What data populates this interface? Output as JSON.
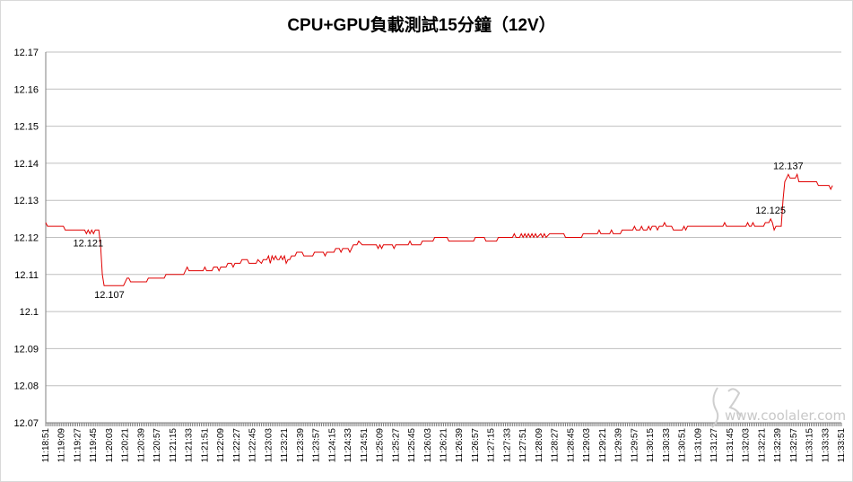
{
  "chart_data": {
    "type": "line",
    "title": "CPU+GPU負載測試15分鐘（12V）",
    "xlabel": "",
    "ylabel": "",
    "ylim": [
      12.07,
      12.17
    ],
    "ytick_labels": [
      "12.07",
      "12.08",
      "12.09",
      "12.1",
      "12.11",
      "12.12",
      "12.13",
      "12.14",
      "12.15",
      "12.16",
      "12.17"
    ],
    "grid": true,
    "legend": "none",
    "x_tick_labels": [
      "11:18:51",
      "11:19:09",
      "11:19:27",
      "11:19:45",
      "11:20:03",
      "11:20:21",
      "11:20:39",
      "11:20:57",
      "11:21:15",
      "11:21:33",
      "11:21:51",
      "11:22:09",
      "11:22:27",
      "11:22:45",
      "11:23:03",
      "11:23:21",
      "11:23:39",
      "11:23:57",
      "11:24:15",
      "11:24:33",
      "11:24:51",
      "11:25:09",
      "11:25:27",
      "11:25:45",
      "11:26:03",
      "11:26:21",
      "11:26:39",
      "11:26:57",
      "11:27:15",
      "11:27:33",
      "11:27:51",
      "11:28:09",
      "11:28:27",
      "11:28:45",
      "11:29:03",
      "11:29:21",
      "11:29:39",
      "11:29:57",
      "11:30:15",
      "11:30:33",
      "11:30:51",
      "11:31:09",
      "11:31:27",
      "11:31:45",
      "11:32:03",
      "11:32:21",
      "11:32:39",
      "11:32:57",
      "11:33:15",
      "11:33:33",
      "11:33:51"
    ],
    "series": [
      {
        "color": "#e00000",
        "points": [
          [
            "11:18:51",
            12.124
          ],
          [
            "11:18:53",
            12.123
          ],
          [
            "11:19:11",
            12.123
          ],
          [
            "11:19:13",
            12.122
          ],
          [
            "11:19:35",
            12.122
          ],
          [
            "11:19:37",
            12.121
          ],
          [
            "11:19:39",
            12.122
          ],
          [
            "11:19:41",
            12.121
          ],
          [
            "11:19:43",
            12.122
          ],
          [
            "11:19:45",
            12.121
          ],
          [
            "11:19:47",
            12.122
          ],
          [
            "11:19:51",
            12.122
          ],
          [
            "11:19:53",
            12.118
          ],
          [
            "11:19:55",
            12.11
          ],
          [
            "11:19:57",
            12.107
          ],
          [
            "11:20:19",
            12.107
          ],
          [
            "11:20:21",
            12.108
          ],
          [
            "11:20:23",
            12.109
          ],
          [
            "11:20:25",
            12.109
          ],
          [
            "11:20:27",
            12.108
          ],
          [
            "11:20:45",
            12.108
          ],
          [
            "11:20:47",
            12.109
          ],
          [
            "11:21:05",
            12.109
          ],
          [
            "11:21:07",
            12.11
          ],
          [
            "11:21:27",
            12.11
          ],
          [
            "11:21:29",
            12.111
          ],
          [
            "11:21:31",
            12.112
          ],
          [
            "11:21:33",
            12.111
          ],
          [
            "11:21:49",
            12.111
          ],
          [
            "11:21:51",
            12.112
          ],
          [
            "11:21:53",
            12.111
          ],
          [
            "11:21:59",
            12.111
          ],
          [
            "11:22:01",
            12.112
          ],
          [
            "11:22:05",
            12.112
          ],
          [
            "11:22:07",
            12.111
          ],
          [
            "11:22:09",
            12.112
          ],
          [
            "11:22:15",
            12.112
          ],
          [
            "11:22:17",
            12.113
          ],
          [
            "11:22:21",
            12.113
          ],
          [
            "11:22:23",
            12.112
          ],
          [
            "11:22:25",
            12.113
          ],
          [
            "11:22:31",
            12.113
          ],
          [
            "11:22:33",
            12.114
          ],
          [
            "11:22:39",
            12.114
          ],
          [
            "11:22:41",
            12.113
          ],
          [
            "11:22:49",
            12.113
          ],
          [
            "11:22:51",
            12.114
          ],
          [
            "11:22:55",
            12.113
          ],
          [
            "11:22:57",
            12.114
          ],
          [
            "11:23:01",
            12.114
          ],
          [
            "11:23:03",
            12.115
          ],
          [
            "11:23:05",
            12.113
          ],
          [
            "11:23:07",
            12.115
          ],
          [
            "11:23:09",
            12.114
          ],
          [
            "11:23:11",
            12.115
          ],
          [
            "11:23:13",
            12.114
          ],
          [
            "11:23:15",
            12.114
          ],
          [
            "11:23:17",
            12.115
          ],
          [
            "11:23:19",
            12.114
          ],
          [
            "11:23:21",
            12.115
          ],
          [
            "11:23:23",
            12.113
          ],
          [
            "11:23:25",
            12.114
          ],
          [
            "11:23:27",
            12.114
          ],
          [
            "11:23:29",
            12.115
          ],
          [
            "11:23:33",
            12.115
          ],
          [
            "11:23:35",
            12.116
          ],
          [
            "11:23:41",
            12.116
          ],
          [
            "11:23:43",
            12.115
          ],
          [
            "11:23:53",
            12.115
          ],
          [
            "11:23:55",
            12.116
          ],
          [
            "11:24:05",
            12.116
          ],
          [
            "11:24:07",
            12.115
          ],
          [
            "11:24:09",
            12.116
          ],
          [
            "11:24:17",
            12.116
          ],
          [
            "11:24:19",
            12.117
          ],
          [
            "11:24:23",
            12.117
          ],
          [
            "11:24:25",
            12.116
          ],
          [
            "11:24:27",
            12.117
          ],
          [
            "11:24:33",
            12.117
          ],
          [
            "11:24:35",
            12.116
          ],
          [
            "11:24:37",
            12.117
          ],
          [
            "11:24:39",
            12.118
          ],
          [
            "11:24:43",
            12.118
          ],
          [
            "11:24:45",
            12.119
          ],
          [
            "11:24:49",
            12.118
          ],
          [
            "11:25:05",
            12.118
          ],
          [
            "11:25:07",
            12.117
          ],
          [
            "11:25:09",
            12.118
          ],
          [
            "11:25:11",
            12.117
          ],
          [
            "11:25:13",
            12.118
          ],
          [
            "11:25:23",
            12.118
          ],
          [
            "11:25:25",
            12.117
          ],
          [
            "11:25:27",
            12.118
          ],
          [
            "11:25:41",
            12.118
          ],
          [
            "11:25:43",
            12.119
          ],
          [
            "11:25:45",
            12.118
          ],
          [
            "11:25:55",
            12.118
          ],
          [
            "11:25:57",
            12.119
          ],
          [
            "11:26:09",
            12.119
          ],
          [
            "11:26:11",
            12.12
          ],
          [
            "11:26:25",
            12.12
          ],
          [
            "11:26:27",
            12.119
          ],
          [
            "11:26:55",
            12.119
          ],
          [
            "11:26:57",
            12.12
          ],
          [
            "11:27:07",
            12.12
          ],
          [
            "11:27:09",
            12.119
          ],
          [
            "11:27:21",
            12.119
          ],
          [
            "11:27:23",
            12.12
          ],
          [
            "11:27:39",
            12.12
          ],
          [
            "11:27:41",
            12.121
          ],
          [
            "11:27:43",
            12.12
          ],
          [
            "11:27:47",
            12.12
          ],
          [
            "11:27:49",
            12.121
          ],
          [
            "11:27:51",
            12.12
          ],
          [
            "11:27:53",
            12.121
          ],
          [
            "11:27:55",
            12.12
          ],
          [
            "11:27:57",
            12.121
          ],
          [
            "11:27:59",
            12.12
          ],
          [
            "11:28:01",
            12.121
          ],
          [
            "11:28:03",
            12.12
          ],
          [
            "11:28:05",
            12.121
          ],
          [
            "11:28:07",
            12.12
          ],
          [
            "11:28:11",
            12.121
          ],
          [
            "11:28:13",
            12.12
          ],
          [
            "11:28:15",
            12.121
          ],
          [
            "11:28:17",
            12.12
          ],
          [
            "11:28:21",
            12.121
          ],
          [
            "11:28:37",
            12.121
          ],
          [
            "11:28:39",
            12.12
          ],
          [
            "11:28:57",
            12.12
          ],
          [
            "11:28:59",
            12.121
          ],
          [
            "11:29:15",
            12.121
          ],
          [
            "11:29:17",
            12.122
          ],
          [
            "11:29:19",
            12.121
          ],
          [
            "11:29:29",
            12.121
          ],
          [
            "11:29:31",
            12.122
          ],
          [
            "11:29:33",
            12.121
          ],
          [
            "11:29:41",
            12.121
          ],
          [
            "11:29:43",
            12.122
          ],
          [
            "11:29:55",
            12.122
          ],
          [
            "11:29:57",
            12.123
          ],
          [
            "11:29:59",
            12.122
          ],
          [
            "11:30:03",
            12.122
          ],
          [
            "11:30:05",
            12.123
          ],
          [
            "11:30:07",
            12.122
          ],
          [
            "11:30:11",
            12.122
          ],
          [
            "11:30:13",
            12.123
          ],
          [
            "11:30:15",
            12.122
          ],
          [
            "11:30:17",
            12.123
          ],
          [
            "11:30:21",
            12.123
          ],
          [
            "11:30:23",
            12.122
          ],
          [
            "11:30:25",
            12.123
          ],
          [
            "11:30:29",
            12.123
          ],
          [
            "11:30:31",
            12.124
          ],
          [
            "11:30:33",
            12.123
          ],
          [
            "11:30:39",
            12.123
          ],
          [
            "11:30:41",
            12.122
          ],
          [
            "11:30:51",
            12.122
          ],
          [
            "11:30:53",
            12.123
          ],
          [
            "11:30:55",
            12.122
          ],
          [
            "11:30:57",
            12.123
          ],
          [
            "11:31:37",
            12.123
          ],
          [
            "11:31:39",
            12.124
          ],
          [
            "11:31:41",
            12.123
          ],
          [
            "11:32:03",
            12.123
          ],
          [
            "11:32:05",
            12.124
          ],
          [
            "11:32:07",
            12.123
          ],
          [
            "11:32:09",
            12.123
          ],
          [
            "11:32:11",
            12.124
          ],
          [
            "11:32:13",
            12.123
          ],
          [
            "11:32:23",
            12.123
          ],
          [
            "11:32:25",
            12.124
          ],
          [
            "11:32:29",
            12.124
          ],
          [
            "11:32:31",
            12.125
          ],
          [
            "11:32:33",
            12.124
          ],
          [
            "11:32:35",
            12.122
          ],
          [
            "11:32:37",
            12.123
          ],
          [
            "11:32:43",
            12.123
          ],
          [
            "11:32:45",
            12.13
          ],
          [
            "11:32:47",
            12.135
          ],
          [
            "11:32:49",
            12.136
          ],
          [
            "11:32:51",
            12.137
          ],
          [
            "11:32:53",
            12.136
          ],
          [
            "11:32:59",
            12.136
          ],
          [
            "11:33:01",
            12.137
          ],
          [
            "11:33:03",
            12.135
          ],
          [
            "11:33:23",
            12.135
          ],
          [
            "11:33:25",
            12.134
          ],
          [
            "11:33:37",
            12.134
          ],
          [
            "11:33:39",
            12.133
          ],
          [
            "11:33:41",
            12.134
          ]
        ]
      }
    ],
    "annotations": [
      {
        "x": "11:19:39",
        "y": 12.121,
        "text": "12.121"
      },
      {
        "x": "11:20:03",
        "y": 12.107,
        "text": "12.107"
      },
      {
        "x": "11:32:31",
        "y": 12.125,
        "text": "12.125"
      },
      {
        "x": "11:32:51",
        "y": 12.137,
        "text": "12.137"
      }
    ]
  },
  "watermark": {
    "text": "www.coolaler.com"
  }
}
